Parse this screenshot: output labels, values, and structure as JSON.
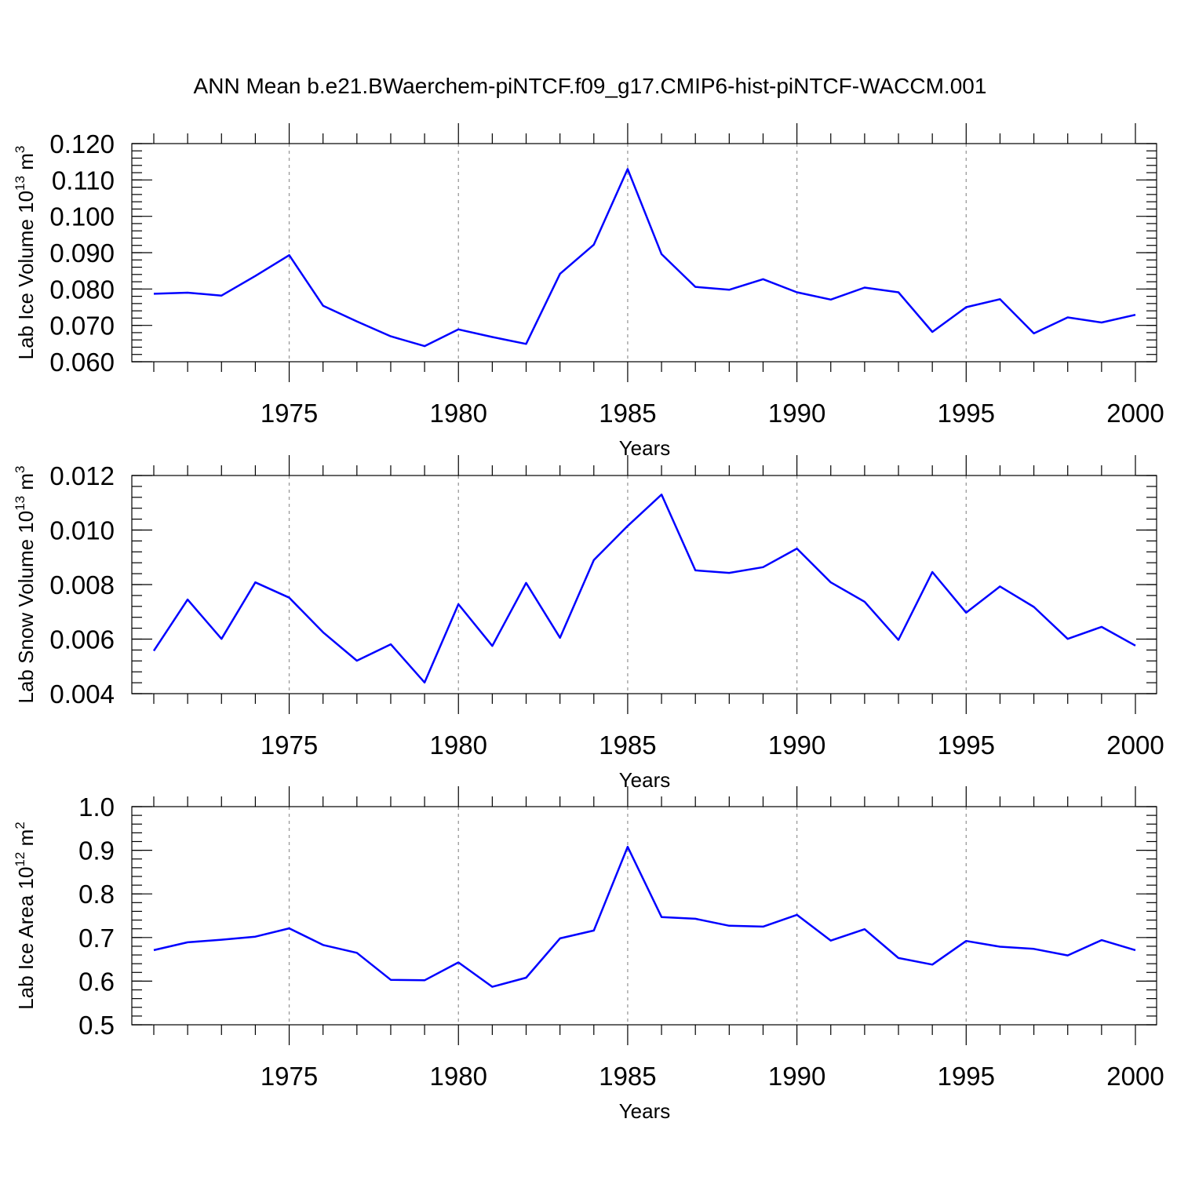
{
  "title": "ANN Mean b.e21.BWaerchem-piNTCF.f09_g17.CMIP6-hist-piNTCF-WACCM.001",
  "colors": {
    "line": "#0000ff",
    "grid": "#9a9a9a",
    "axes": "#000000"
  },
  "chart_data": [
    {
      "type": "line",
      "title": "",
      "xlabel": "Years",
      "ylabel": "Lab Ice Volume",
      "ylabel_base": "10",
      "ylabel_exp": "13",
      "ylabel_unit": "m",
      "ylabel_unit_exp": "3",
      "xlim": [
        1971,
        2000
      ],
      "ylim": [
        0.06,
        0.12
      ],
      "x_ticks": [
        1975,
        1980,
        1985,
        1990,
        1995,
        2000
      ],
      "x_tick_labels": [
        "1975",
        "1980",
        "1985",
        "1990",
        "1995",
        "2000"
      ],
      "y_ticks": [
        0.06,
        0.07,
        0.08,
        0.09,
        0.1,
        0.11,
        0.12
      ],
      "y_tick_labels": [
        "0.060",
        "0.070",
        "0.080",
        "0.090",
        "0.100",
        "0.110",
        "0.120"
      ],
      "y_minor_step": 0.002,
      "grid": "vertical dashed at major x ticks",
      "series": [
        {
          "x": [
            1971,
            1972,
            1973,
            1974,
            1975,
            1976,
            1977,
            1978,
            1979,
            1980,
            1981,
            1982,
            1983,
            1984,
            1985,
            1986,
            1987,
            1988,
            1989,
            1990,
            1991,
            1992,
            1993,
            1994,
            1995,
            1996,
            1997,
            1998,
            1999,
            2000
          ],
          "values": [
            0.0787,
            0.079,
            0.0782,
            0.0836,
            0.0893,
            0.0754,
            0.0711,
            0.067,
            0.0643,
            0.0689,
            0.0668,
            0.0649,
            0.0842,
            0.0922,
            0.113,
            0.0896,
            0.0806,
            0.0798,
            0.0827,
            0.0791,
            0.0771,
            0.0804,
            0.0791,
            0.0682,
            0.075,
            0.0772,
            0.0678,
            0.0722,
            0.0708,
            0.0729
          ]
        }
      ]
    },
    {
      "type": "line",
      "title": "",
      "xlabel": "Years",
      "ylabel": "Lab Snow Volume",
      "ylabel_base": "10",
      "ylabel_exp": "13",
      "ylabel_unit": "m",
      "ylabel_unit_exp": "3",
      "xlim": [
        1971,
        2000
      ],
      "ylim": [
        0.004,
        0.012
      ],
      "x_ticks": [
        1975,
        1980,
        1985,
        1990,
        1995,
        2000
      ],
      "x_tick_labels": [
        "1975",
        "1980",
        "1985",
        "1990",
        "1995",
        "2000"
      ],
      "y_ticks": [
        0.004,
        0.006,
        0.008,
        0.01,
        0.012
      ],
      "y_tick_labels": [
        "0.004",
        "0.006",
        "0.008",
        "0.010",
        "0.012"
      ],
      "y_minor_step": 0.0004,
      "grid": "vertical dashed at major x ticks",
      "series": [
        {
          "x": [
            1971,
            1972,
            1973,
            1974,
            1975,
            1976,
            1977,
            1978,
            1979,
            1980,
            1981,
            1982,
            1983,
            1984,
            1985,
            1986,
            1987,
            1988,
            1989,
            1990,
            1991,
            1992,
            1993,
            1994,
            1995,
            1996,
            1997,
            1998,
            1999,
            2000
          ],
          "values": [
            0.00557,
            0.00745,
            0.00601,
            0.00808,
            0.00752,
            0.00625,
            0.00521,
            0.00581,
            0.00441,
            0.00728,
            0.00575,
            0.00806,
            0.00605,
            0.0089,
            0.01015,
            0.0113,
            0.00852,
            0.00843,
            0.00864,
            0.00932,
            0.00808,
            0.00737,
            0.00597,
            0.00846,
            0.00697,
            0.00793,
            0.00718,
            0.00601,
            0.00645,
            0.00576
          ]
        }
      ]
    },
    {
      "type": "line",
      "title": "",
      "xlabel": "Years",
      "ylabel": "Lab Ice Area",
      "ylabel_base": "10",
      "ylabel_exp": "12",
      "ylabel_unit": "m",
      "ylabel_unit_exp": "2",
      "xlim": [
        1971,
        2000
      ],
      "ylim": [
        0.5,
        1.0
      ],
      "x_ticks": [
        1975,
        1980,
        1985,
        1990,
        1995,
        2000
      ],
      "x_tick_labels": [
        "1975",
        "1980",
        "1985",
        "1990",
        "1995",
        "2000"
      ],
      "y_ticks": [
        0.5,
        0.6,
        0.7,
        0.8,
        0.9,
        1.0
      ],
      "y_tick_labels": [
        "0.5",
        "0.6",
        "0.7",
        "0.8",
        "0.9",
        "1.0"
      ],
      "y_minor_step": 0.02,
      "grid": "vertical dashed at major x ticks",
      "series": [
        {
          "x": [
            1971,
            1972,
            1973,
            1974,
            1975,
            1976,
            1977,
            1978,
            1979,
            1980,
            1981,
            1982,
            1983,
            1984,
            1985,
            1986,
            1987,
            1988,
            1989,
            1990,
            1991,
            1992,
            1993,
            1994,
            1995,
            1996,
            1997,
            1998,
            1999,
            2000
          ],
          "values": [
            0.671,
            0.689,
            0.695,
            0.702,
            0.721,
            0.683,
            0.665,
            0.603,
            0.602,
            0.643,
            0.587,
            0.608,
            0.698,
            0.716,
            0.908,
            0.747,
            0.743,
            0.727,
            0.725,
            0.752,
            0.693,
            0.719,
            0.653,
            0.638,
            0.692,
            0.679,
            0.674,
            0.659,
            0.694,
            0.671
          ]
        }
      ]
    }
  ]
}
